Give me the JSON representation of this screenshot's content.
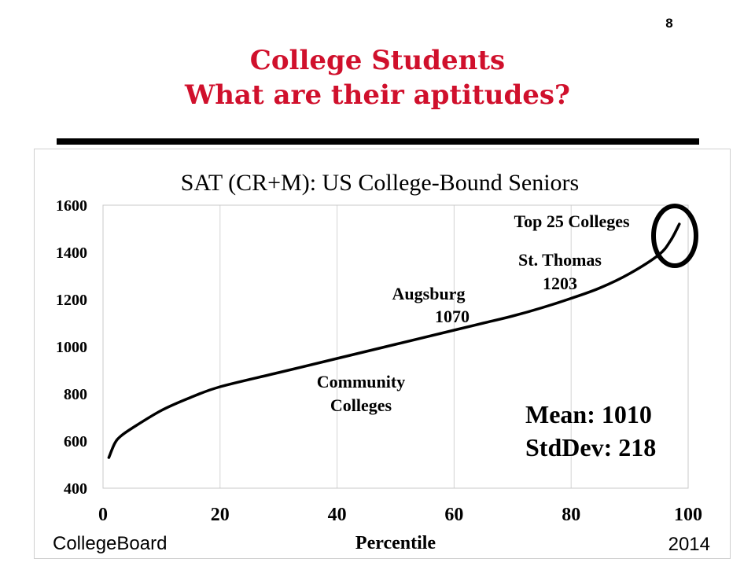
{
  "slide": {
    "number": "8",
    "title_line1": "College Students",
    "title_line2": "What are their aptitudes?",
    "title_color": "#d0102c"
  },
  "chart_data": {
    "type": "line",
    "title": "SAT (CR+M): US College-Bound Seniors",
    "xlabel": "Percentile",
    "ylabel": "",
    "xlim": [
      0,
      100
    ],
    "ylim": [
      400,
      1600
    ],
    "x_ticks": [
      "0",
      "20",
      "40",
      "60",
      "80",
      "100"
    ],
    "y_ticks": [
      "400",
      "600",
      "800",
      "1000",
      "1200",
      "1400",
      "1600"
    ],
    "grid": "vertical",
    "series": [
      {
        "color": "#000000",
        "x": [
          1,
          2,
          3,
          5,
          10,
          15,
          20,
          30,
          40,
          50,
          60,
          65,
          70,
          75,
          80,
          85,
          90,
          95,
          97,
          98.5
        ],
        "y": [
          530,
          590,
          620,
          655,
          730,
          785,
          830,
          890,
          950,
          1010,
          1070,
          1100,
          1130,
          1165,
          1205,
          1250,
          1310,
          1390,
          1450,
          1520
        ]
      }
    ],
    "annotations": {
      "top25": "Top 25 Colleges",
      "st_thomas_name": "St. Thomas",
      "st_thomas_value": "1203",
      "augsburg_name": "Augsburg",
      "augsburg_value": "1070",
      "community_line1": "Community",
      "community_line2": "Colleges",
      "mean": "Mean: 1010",
      "stddev": "StdDev: 218"
    },
    "source": "CollegeBoard",
    "year": "2014"
  }
}
